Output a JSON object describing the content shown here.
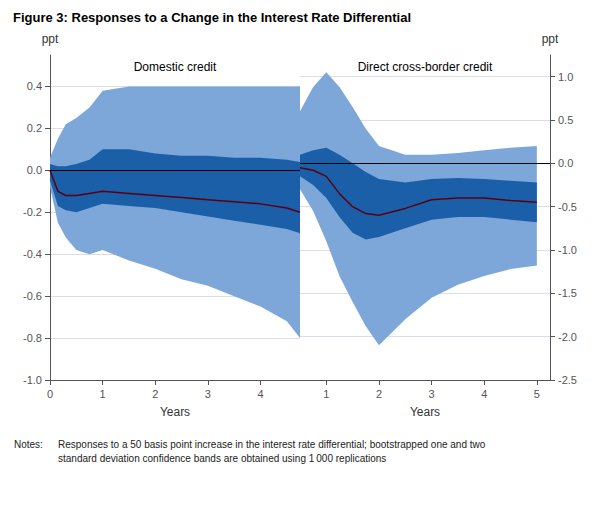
{
  "chart_data": [
    {
      "type": "line",
      "title": "Figure 3: Responses to a Change in the Interest Rate Differential",
      "subtitle": "Domestic credit",
      "annotations": [
        "Notes:",
        "Responses to a 50 basis point increase in the interest rate differential; bootstrapped one and two\nstandard deviation confidence bands are obtained using 1 000 replications"
      ],
      "xlabel": "Years",
      "ylabel": "ppt",
      "x": [
        0.0,
        0.15,
        0.3,
        0.5,
        0.75,
        1.0,
        1.5,
        2.0,
        2.5,
        3.0,
        3.5,
        4.0,
        4.5,
        4.75
      ],
      "series": [
        {
          "type": "band",
          "color": "#7da7d9",
          "lower": [
            -0.08,
            -0.25,
            -0.32,
            -0.38,
            -0.4,
            -0.38,
            -0.43,
            -0.47,
            -0.52,
            -0.55,
            -0.6,
            -0.65,
            -0.72,
            -0.8
          ],
          "upper": [
            0.06,
            0.15,
            0.22,
            0.25,
            0.3,
            0.38,
            0.4,
            0.4,
            0.4,
            0.4,
            0.4,
            0.4,
            0.4,
            0.4
          ]
        },
        {
          "type": "band",
          "color": "#1a5fa8",
          "lower": [
            -0.05,
            -0.17,
            -0.19,
            -0.2,
            -0.18,
            -0.16,
            -0.17,
            -0.18,
            -0.2,
            -0.22,
            -0.24,
            -0.26,
            -0.28,
            -0.3
          ],
          "upper": [
            0.03,
            0.02,
            0.02,
            0.03,
            0.05,
            0.1,
            0.1,
            0.08,
            0.07,
            0.07,
            0.06,
            0.06,
            0.05,
            0.04
          ]
        },
        {
          "type": "line",
          "color": "#5c0010",
          "values": [
            0.0,
            -0.1,
            -0.12,
            -0.12,
            -0.11,
            -0.1,
            -0.11,
            -0.12,
            -0.13,
            -0.14,
            -0.15,
            -0.16,
            -0.18,
            -0.2
          ]
        }
      ],
      "hline": 0,
      "xlim": [
        0,
        4.75
      ],
      "xticks": [
        0,
        1,
        2,
        3,
        4
      ],
      "ylim": [
        -1.0,
        0.55
      ],
      "yticks": [
        {
          "value": -1.0,
          "label": "-1.0"
        },
        -0.8,
        -0.6,
        -0.4,
        -0.2,
        {
          "value": 0.0,
          "label": "0.0"
        },
        0.2,
        0.4
      ],
      "grid": true
    },
    {
      "type": "line",
      "subtitle": "Direct cross-border credit",
      "xlabel": "Years",
      "ylabel": "ppt",
      "x": [
        0.5,
        0.75,
        1.0,
        1.25,
        1.5,
        1.75,
        2.0,
        2.5,
        3.0,
        3.5,
        4.0,
        4.5,
        5.0
      ],
      "series": [
        {
          "type": "band",
          "color": "#7da7d9",
          "lower": [
            -0.3,
            -0.55,
            -0.9,
            -1.3,
            -1.6,
            -1.88,
            -2.1,
            -1.8,
            -1.55,
            -1.4,
            -1.3,
            -1.22,
            -1.18
          ],
          "upper": [
            0.6,
            0.88,
            1.05,
            0.88,
            0.65,
            0.4,
            0.2,
            0.1,
            0.1,
            0.12,
            0.15,
            0.18,
            0.2
          ]
        },
        {
          "type": "band",
          "color": "#1a5fa8",
          "lower": [
            -0.15,
            -0.25,
            -0.4,
            -0.62,
            -0.8,
            -0.88,
            -0.85,
            -0.75,
            -0.65,
            -0.62,
            -0.62,
            -0.65,
            -0.68
          ],
          "upper": [
            0.1,
            0.15,
            0.18,
            0.1,
            0.0,
            -0.1,
            -0.18,
            -0.22,
            -0.18,
            -0.17,
            -0.18,
            -0.2,
            -0.22
          ]
        },
        {
          "type": "line",
          "color": "#5c0010",
          "values": [
            -0.05,
            -0.08,
            -0.15,
            -0.35,
            -0.5,
            -0.58,
            -0.6,
            -0.52,
            -0.42,
            -0.4,
            -0.4,
            -0.43,
            -0.45
          ]
        }
      ],
      "hline": 0,
      "xlim": [
        0.5,
        5.25
      ],
      "xticks": [
        1,
        2,
        3,
        4,
        5
      ],
      "ylim": [
        -2.5,
        1.25
      ],
      "yticks": [
        -2.5,
        {
          "value": -2.0,
          "label": "-2.0"
        },
        -1.5,
        {
          "value": -1.0,
          "label": "-1.0"
        },
        -0.5,
        {
          "value": 0.0,
          "label": "0.0"
        },
        0.5,
        {
          "value": 1.0,
          "label": "1.0"
        }
      ],
      "grid": true
    }
  ]
}
